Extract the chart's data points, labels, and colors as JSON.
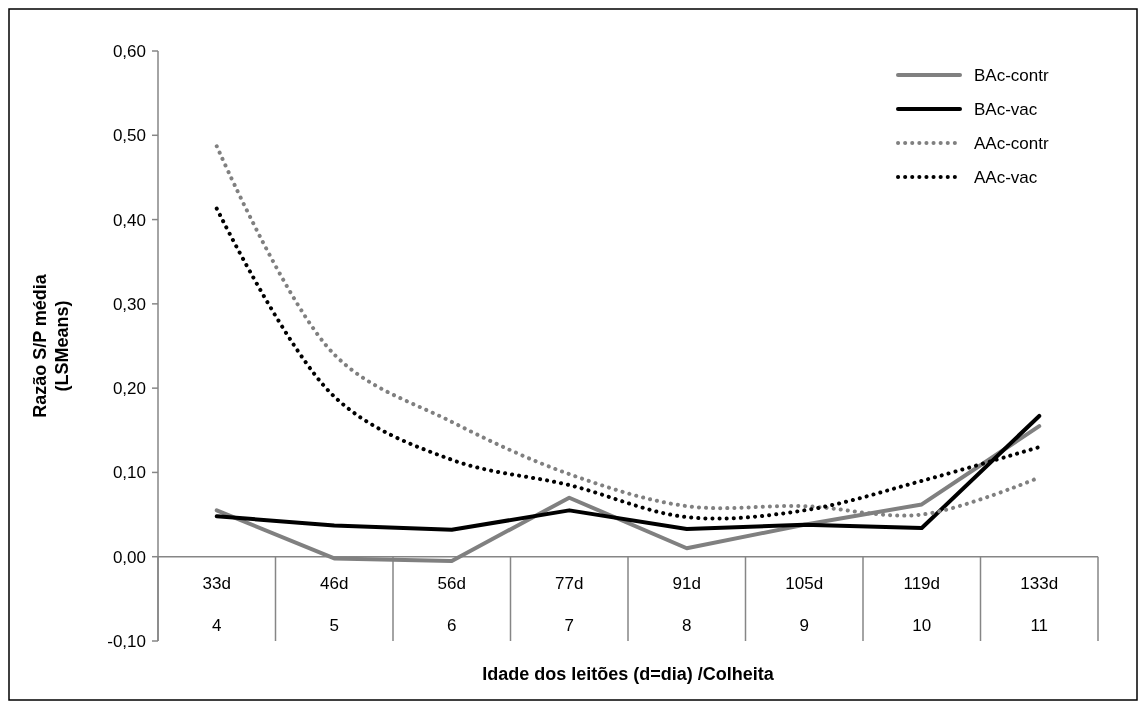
{
  "chart_data": {
    "type": "line",
    "xlabel": "Idade dos leitões (d=dia) /Colheita",
    "ylabel": "Razão S/P média (LSMeans)",
    "categories": [
      "33d\n4",
      "46d\n5",
      "56d\n6",
      "77d\n7",
      "91d\n8",
      "105d\n9",
      "119d\n10",
      "133d\n11"
    ],
    "ylim": [
      -0.1,
      0.6
    ],
    "yticks": [
      {
        "value": -0.1,
        "label": "-0,10"
      },
      {
        "value": 0,
        "label": "0,00"
      },
      {
        "value": 0.1,
        "label": "0,10"
      },
      {
        "value": 0.2,
        "label": "0,20"
      },
      {
        "value": 0.3,
        "label": "0,30"
      },
      {
        "value": 0.4,
        "label": "0,40"
      },
      {
        "value": 0.5,
        "label": "0,50"
      },
      {
        "value": 0.6,
        "label": "0,60"
      }
    ],
    "legend": "top right",
    "series": [
      {
        "name": "BAc-contr",
        "color": "#808080",
        "line_style": "solid",
        "values": [
          0.055,
          -0.002,
          -0.005,
          0.07,
          0.01,
          0.038,
          0.062,
          0.155
        ]
      },
      {
        "name": "BAc-vac",
        "color": "#000000",
        "line_style": "solid",
        "values": [
          0.048,
          0.037,
          0.032,
          0.055,
          0.033,
          0.038,
          0.034,
          0.167
        ]
      },
      {
        "name": "AAc-contr",
        "color": "#808080",
        "line_style": "dotted",
        "values": [
          0.487,
          0.24,
          0.16,
          0.098,
          0.06,
          0.06,
          0.05,
          0.094
        ]
      },
      {
        "name": "AAc-vac",
        "color": "#000000",
        "line_style": "dotted",
        "values": [
          0.413,
          0.19,
          0.115,
          0.085,
          0.047,
          0.055,
          0.09,
          0.13
        ]
      }
    ]
  }
}
